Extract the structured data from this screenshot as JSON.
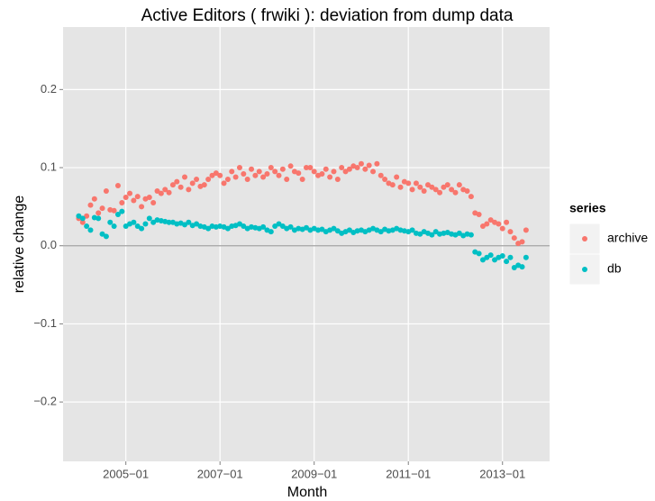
{
  "chart_data": {
    "type": "scatter",
    "title": "Active Editors ( frwiki ): deviation from dump data",
    "x_label": "Month",
    "y_label": "relative change",
    "legend_title": "series",
    "x": [
      "2004-01",
      "2004-02",
      "2004-03",
      "2004-04",
      "2004-05",
      "2004-06",
      "2004-07",
      "2004-08",
      "2004-09",
      "2004-10",
      "2004-11",
      "2004-12",
      "2005-01",
      "2005-02",
      "2005-03",
      "2005-04",
      "2005-05",
      "2005-06",
      "2005-07",
      "2005-08",
      "2005-09",
      "2005-10",
      "2005-11",
      "2005-12",
      "2006-01",
      "2006-02",
      "2006-03",
      "2006-04",
      "2006-05",
      "2006-06",
      "2006-07",
      "2006-08",
      "2006-09",
      "2006-10",
      "2006-11",
      "2006-12",
      "2007-01",
      "2007-02",
      "2007-03",
      "2007-04",
      "2007-05",
      "2007-06",
      "2007-07",
      "2007-08",
      "2007-09",
      "2007-10",
      "2007-11",
      "2007-12",
      "2008-01",
      "2008-02",
      "2008-03",
      "2008-04",
      "2008-05",
      "2008-06",
      "2008-07",
      "2008-08",
      "2008-09",
      "2008-10",
      "2008-11",
      "2008-12",
      "2009-01",
      "2009-02",
      "2009-03",
      "2009-04",
      "2009-05",
      "2009-06",
      "2009-07",
      "2009-08",
      "2009-09",
      "2009-10",
      "2009-11",
      "2009-12",
      "2010-01",
      "2010-02",
      "2010-03",
      "2010-04",
      "2010-05",
      "2010-06",
      "2010-07",
      "2010-08",
      "2010-09",
      "2010-10",
      "2010-11",
      "2010-12",
      "2011-01",
      "2011-02",
      "2011-03",
      "2011-04",
      "2011-05",
      "2011-06",
      "2011-07",
      "2011-08",
      "2011-09",
      "2011-10",
      "2011-11",
      "2011-12",
      "2012-01",
      "2012-02",
      "2012-03",
      "2012-04",
      "2012-05",
      "2012-06",
      "2012-07",
      "2012-08",
      "2012-09",
      "2012-10",
      "2012-11",
      "2012-12",
      "2013-01",
      "2013-02",
      "2013-03",
      "2013-04",
      "2013-05",
      "2013-06",
      "2013-07"
    ],
    "series": [
      {
        "name": "archive",
        "color": "#f8766d",
        "values": [
          0.035,
          0.03,
          0.038,
          0.052,
          0.06,
          0.042,
          0.048,
          0.07,
          0.046,
          0.045,
          0.077,
          0.055,
          0.062,
          0.067,
          0.058,
          0.063,
          0.05,
          0.06,
          0.062,
          0.055,
          0.07,
          0.067,
          0.072,
          0.068,
          0.078,
          0.082,
          0.075,
          0.088,
          0.072,
          0.08,
          0.085,
          0.076,
          0.078,
          0.085,
          0.09,
          0.093,
          0.09,
          0.08,
          0.085,
          0.095,
          0.088,
          0.1,
          0.092,
          0.085,
          0.098,
          0.09,
          0.095,
          0.088,
          0.092,
          0.1,
          0.095,
          0.09,
          0.098,
          0.085,
          0.102,
          0.095,
          0.093,
          0.085,
          0.1,
          0.1,
          0.095,
          0.09,
          0.092,
          0.098,
          0.088,
          0.095,
          0.085,
          0.1,
          0.095,
          0.098,
          0.102,
          0.1,
          0.105,
          0.098,
          0.103,
          0.095,
          0.105,
          0.09,
          0.085,
          0.08,
          0.078,
          0.088,
          0.075,
          0.082,
          0.08,
          0.072,
          0.08,
          0.075,
          0.07,
          0.078,
          0.075,
          0.072,
          0.068,
          0.075,
          0.078,
          0.072,
          0.068,
          0.078,
          0.072,
          0.07,
          0.063,
          0.042,
          0.04,
          0.025,
          0.028,
          0.033,
          0.03,
          0.028,
          0.022,
          0.03,
          0.018,
          0.01,
          0.003,
          0.005,
          0.02
        ]
      },
      {
        "name": "db",
        "color": "#00bfc4",
        "values": [
          0.038,
          0.035,
          0.025,
          0.02,
          0.036,
          0.035,
          0.015,
          0.012,
          0.03,
          0.025,
          0.04,
          0.044,
          0.025,
          0.028,
          0.03,
          0.025,
          0.022,
          0.028,
          0.035,
          0.03,
          0.033,
          0.032,
          0.031,
          0.03,
          0.03,
          0.028,
          0.029,
          0.027,
          0.03,
          0.026,
          0.028,
          0.025,
          0.024,
          0.022,
          0.025,
          0.024,
          0.025,
          0.024,
          0.022,
          0.025,
          0.026,
          0.028,
          0.025,
          0.022,
          0.024,
          0.023,
          0.022,
          0.024,
          0.02,
          0.018,
          0.025,
          0.028,
          0.025,
          0.022,
          0.024,
          0.02,
          0.022,
          0.021,
          0.023,
          0.02,
          0.022,
          0.02,
          0.021,
          0.018,
          0.02,
          0.022,
          0.019,
          0.016,
          0.018,
          0.02,
          0.017,
          0.019,
          0.02,
          0.018,
          0.02,
          0.022,
          0.02,
          0.018,
          0.021,
          0.019,
          0.02,
          0.022,
          0.02,
          0.019,
          0.018,
          0.02,
          0.016,
          0.015,
          0.018,
          0.016,
          0.014,
          0.018,
          0.015,
          0.016,
          0.017,
          0.015,
          0.014,
          0.016,
          0.013,
          0.015,
          0.014,
          -0.008,
          -0.01,
          -0.018,
          -0.015,
          -0.012,
          -0.018,
          -0.015,
          -0.013,
          -0.02,
          -0.015,
          -0.028,
          -0.025,
          -0.027,
          -0.015
        ]
      }
    ],
    "xlim": [
      "2003-09",
      "2014-01"
    ],
    "xticks": [
      {
        "value": "2005-01",
        "label": "2005−01"
      },
      {
        "value": "2007-01",
        "label": "2007−01"
      },
      {
        "value": "2009-01",
        "label": "2009−01"
      },
      {
        "value": "2011-01",
        "label": "2011−01"
      },
      {
        "value": "2013-01",
        "label": "2013−01"
      }
    ],
    "ylim": [
      -0.276,
      0.28
    ],
    "yticks": [
      {
        "value": -0.2,
        "label": "−0.2"
      },
      {
        "value": -0.1,
        "label": "−0.1"
      },
      {
        "value": 0,
        "label": "0.0"
      },
      0.1,
      0.2
    ],
    "hline": 0,
    "grid": true,
    "legend": "right"
  }
}
